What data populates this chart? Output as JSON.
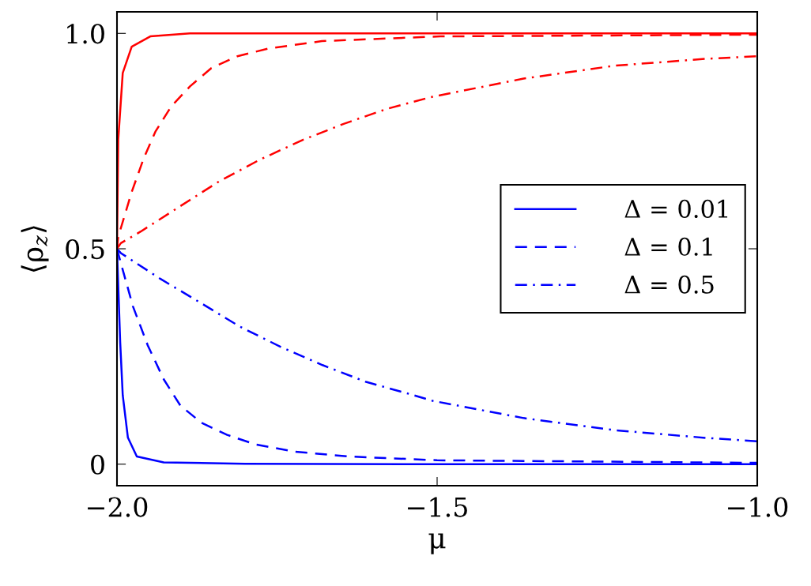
{
  "chart_data": {
    "type": "line",
    "xlabel": "μ",
    "ylabel": "⟨ρ$_{z}$⟩",
    "xlim": [
      -2.0,
      -1.0
    ],
    "ylim": [
      -0.05,
      1.05
    ],
    "xticks": [
      {
        "value": -2.0,
        "label": "−2.0"
      },
      {
        "value": -1.5,
        "label": "−1.5"
      },
      {
        "value": -1.0,
        "label": "−1.0"
      }
    ],
    "yticks": [
      {
        "value": 0,
        "label": "0"
      },
      {
        "value": 0.5,
        "label": "0.5"
      },
      {
        "value": 1.0,
        "label": "1.0"
      }
    ],
    "grid": false,
    "legend": "right",
    "marker": "none",
    "series": [
      {
        "name": "Δ = 0.01",
        "color": "#0000ff",
        "line_style": "solid",
        "x": [
          -2.0,
          -1.995,
          -1.991,
          -1.983,
          -1.969,
          -1.927,
          -1.8,
          -1.5,
          -1.0
        ],
        "values": [
          0.5,
          0.283,
          0.16,
          0.062,
          0.018,
          0.004,
          0.001,
          0,
          0
        ]
      },
      {
        "name": "Δ = 0.1",
        "color": "#0000ff",
        "line_style": "dashed",
        "x": [
          -2.0,
          -1.994,
          -1.975,
          -1.952,
          -1.927,
          -1.901,
          -1.868,
          -1.828,
          -1.784,
          -1.722,
          -1.64,
          -1.5,
          -1.0
        ],
        "values": [
          0.5,
          0.467,
          0.366,
          0.276,
          0.197,
          0.136,
          0.096,
          0.068,
          0.046,
          0.029,
          0.018,
          0.009,
          0.003
        ]
      },
      {
        "name": "Δ = 0.5",
        "color": "#0000ff",
        "line_style": "dashdot",
        "x": [
          -2.0,
          -1.994,
          -1.932,
          -1.87,
          -1.809,
          -1.744,
          -1.679,
          -1.611,
          -1.541,
          -1.507,
          -1.365,
          -1.223,
          -1.08,
          -1.0
        ],
        "values": [
          0.5,
          0.49,
          0.43,
          0.375,
          0.32,
          0.272,
          0.23,
          0.191,
          0.162,
          0.147,
          0.107,
          0.079,
          0.061,
          0.053
        ]
      },
      {
        "color": "#ff0000",
        "line_style": "solid",
        "x": [
          -2.0,
          -1.998,
          -1.991,
          -1.977,
          -1.948,
          -1.886,
          -1.5,
          -1.0
        ],
        "values": [
          0.5,
          0.754,
          0.908,
          0.969,
          0.993,
          1.0,
          1.0,
          1.0
        ]
      },
      {
        "color": "#ff0000",
        "line_style": "dashed",
        "x": [
          -2.0,
          -1.998,
          -1.977,
          -1.958,
          -1.94,
          -1.915,
          -1.886,
          -1.853,
          -1.812,
          -1.763,
          -1.68,
          -1.495,
          -1.0
        ],
        "values": [
          0.5,
          0.528,
          0.632,
          0.711,
          0.772,
          0.831,
          0.877,
          0.919,
          0.947,
          0.965,
          0.982,
          0.993,
          0.997
        ]
      },
      {
        "color": "#ff0000",
        "line_style": "dashdot",
        "x": [
          -2.0,
          -1.994,
          -1.963,
          -1.901,
          -1.841,
          -1.778,
          -1.711,
          -1.646,
          -1.578,
          -1.507,
          -1.365,
          -1.223,
          -1.08,
          -1.0
        ],
        "values": [
          0.5,
          0.513,
          0.54,
          0.599,
          0.656,
          0.706,
          0.752,
          0.79,
          0.825,
          0.853,
          0.895,
          0.925,
          0.941,
          0.947
        ]
      }
    ]
  }
}
